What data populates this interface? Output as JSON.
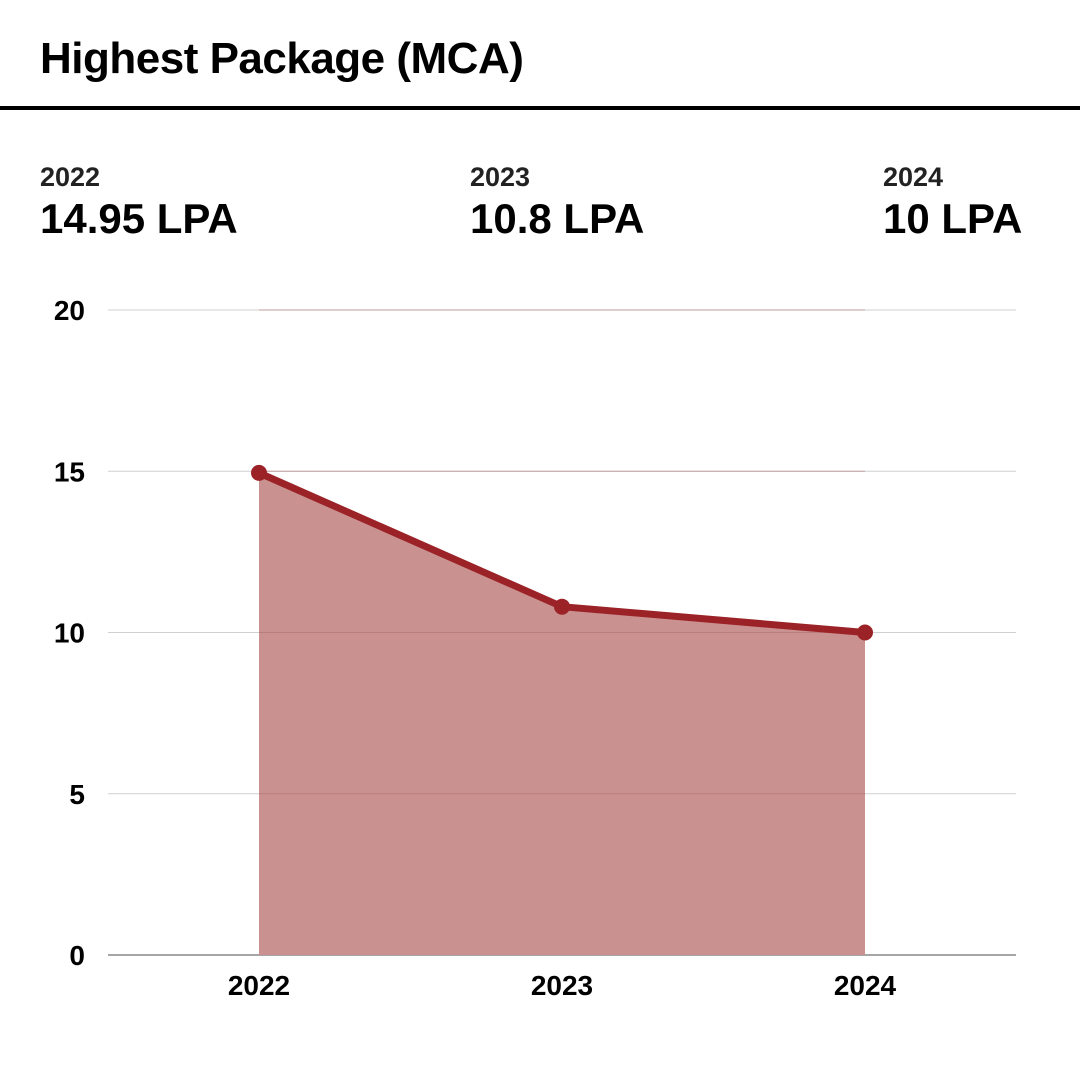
{
  "title": "Highest Package (MCA)",
  "stats": [
    {
      "year": "2022",
      "value": "14.95 LPA"
    },
    {
      "year": "2023",
      "value": "10.8 LPA"
    },
    {
      "year": "2024",
      "value": "10 LPA"
    }
  ],
  "colors": {
    "line": "#9b2226",
    "area": "#c98f8f",
    "grid": "#d0d0d0",
    "axis": "#888888"
  },
  "chart_data": {
    "type": "area",
    "categories": [
      "2022",
      "2023",
      "2024"
    ],
    "series": [
      {
        "values": [
          14.95,
          10.8,
          10
        ]
      }
    ],
    "ylim": [
      0,
      20
    ],
    "yticks": [
      "0",
      "5",
      "10",
      "15",
      "20"
    ],
    "grid": true,
    "markers": true
  }
}
